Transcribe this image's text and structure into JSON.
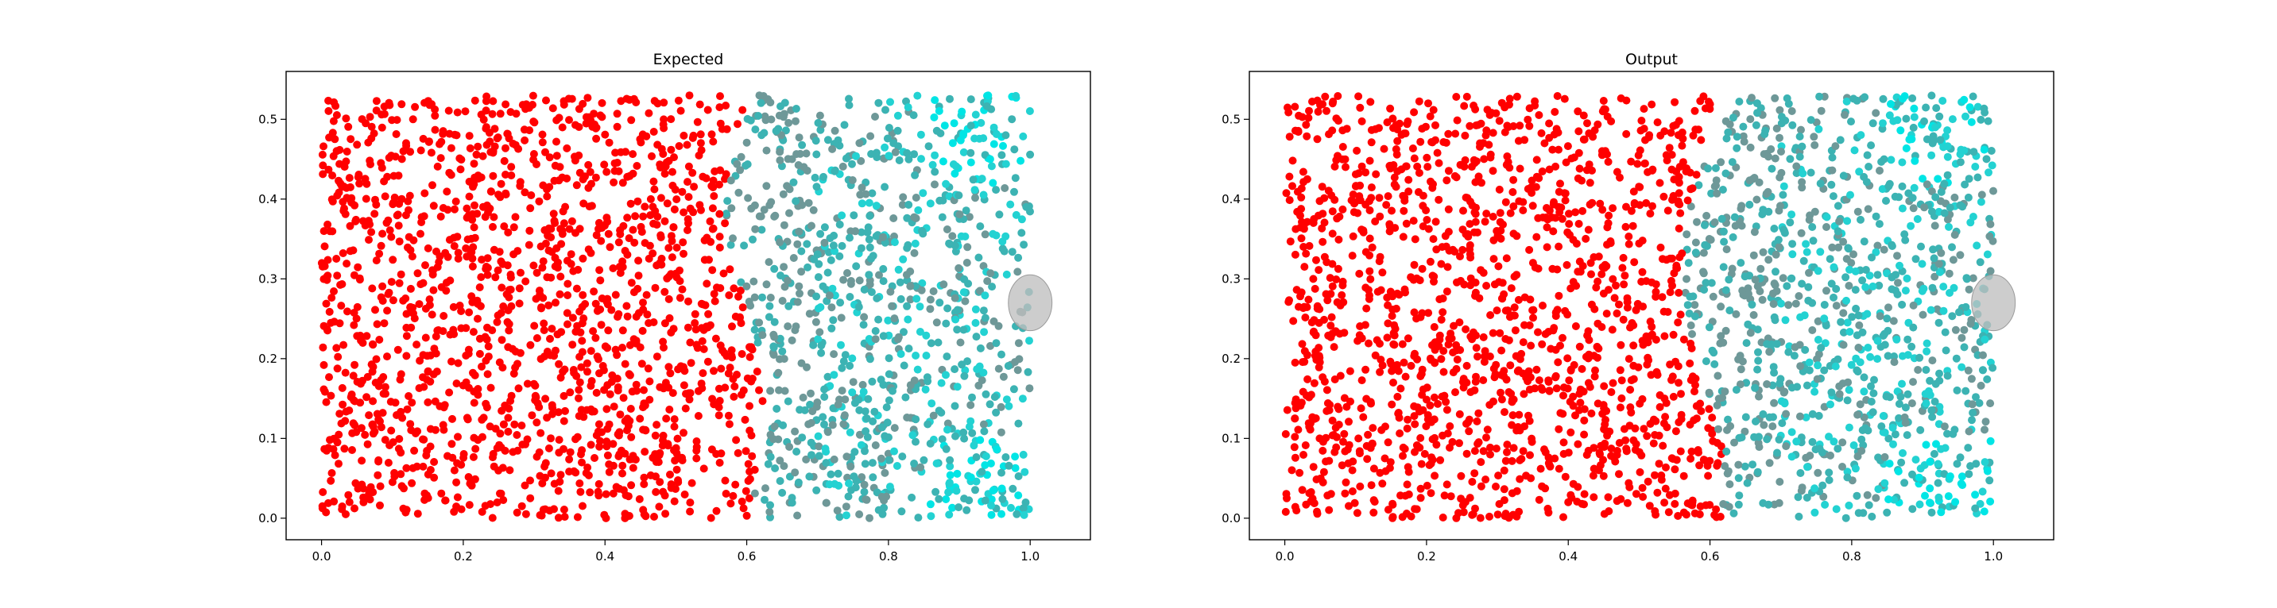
{
  "chart_data": [
    {
      "type": "scatter",
      "title": "Expected",
      "xlabel": "",
      "ylabel": "",
      "xlim": [
        -0.05,
        1.085
      ],
      "ylim": [
        -0.027,
        0.56
      ],
      "x_ticks": [
        0.0,
        0.2,
        0.4,
        0.6,
        0.8,
        1.0
      ],
      "x_tick_labels": [
        "0.0",
        "0.2",
        "0.4",
        "0.6",
        "0.8",
        "1.0"
      ],
      "y_ticks": [
        0.0,
        0.1,
        0.2,
        0.3,
        0.4,
        0.5
      ],
      "y_tick_labels": [
        "0.0",
        "0.1",
        "0.2",
        "0.3",
        "0.4",
        "0.5"
      ],
      "grid": false,
      "legend": "none",
      "points": {
        "count": 2500,
        "x_range": [
          0.0,
          1.0
        ],
        "y_range": [
          0.0,
          0.53
        ],
        "color_rule": "red for points left of a boundary near x ≈ 0.58–0.62; teal/cyan shades to the right of it",
        "colors": {
          "left": "#ff0000",
          "right": [
            "#6e9898",
            "#3cb3b3",
            "#23d2d2",
            "#00e5e5"
          ]
        }
      },
      "obstacle": {
        "shape": "circle",
        "center": [
          1.0,
          0.27
        ],
        "radius": 0.035,
        "color": "#bfbfbf"
      }
    },
    {
      "type": "scatter",
      "title": "Output",
      "xlabel": "",
      "ylabel": "",
      "xlim": [
        -0.05,
        1.085
      ],
      "ylim": [
        -0.027,
        0.56
      ],
      "x_ticks": [
        0.0,
        0.2,
        0.4,
        0.6,
        0.8,
        1.0
      ],
      "x_tick_labels": [
        "0.0",
        "0.2",
        "0.4",
        "0.6",
        "0.8",
        "1.0"
      ],
      "y_ticks": [
        0.0,
        0.1,
        0.2,
        0.3,
        0.4,
        0.5
      ],
      "y_tick_labels": [
        "0.0",
        "0.1",
        "0.2",
        "0.3",
        "0.4",
        "0.5"
      ],
      "grid": false,
      "legend": "none",
      "points": {
        "count": 2500,
        "x_range": [
          0.0,
          1.0
        ],
        "y_range": [
          0.0,
          0.53
        ],
        "color_rule": "red for points left of a boundary near x ≈ 0.58–0.63; teal/cyan shades to the right of it",
        "colors": {
          "left": "#ff0000",
          "right": [
            "#6e9898",
            "#3cb3b3",
            "#23d2d2",
            "#00e5e5"
          ]
        }
      },
      "obstacle": {
        "shape": "circle",
        "center": [
          1.0,
          0.27
        ],
        "radius": 0.035,
        "color": "#bfbfbf"
      }
    }
  ]
}
